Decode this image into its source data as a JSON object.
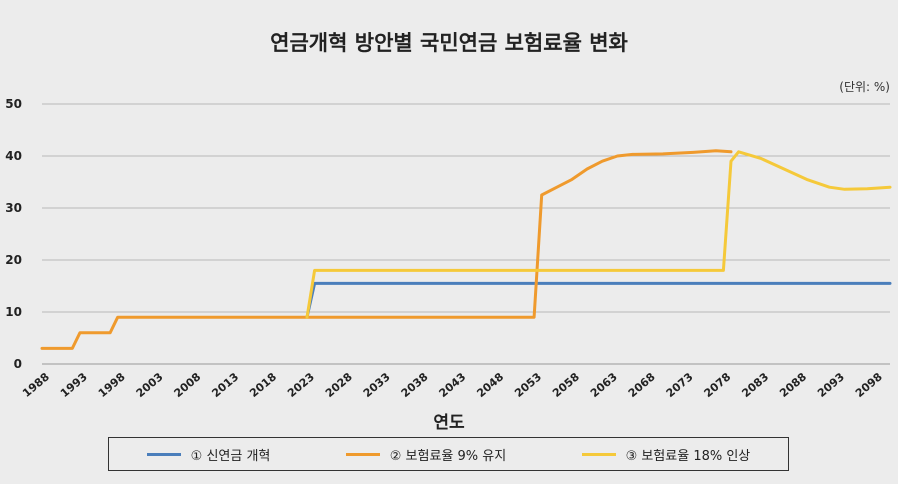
{
  "chart_data": {
    "type": "line",
    "title": "연금개혁 방안별 국민연금 보험료율 변화",
    "unit": "(단위: %)",
    "xlabel": "연도",
    "ylabel": "",
    "ylim": [
      0,
      50
    ],
    "yticks": [
      "0",
      "10",
      "20",
      "30",
      "40",
      "50"
    ],
    "xlim": [
      1988,
      2100
    ],
    "xticks": [
      "1988",
      "1993",
      "1998",
      "2003",
      "2008",
      "2013",
      "2018",
      "2023",
      "2028",
      "2033",
      "2038",
      "2043",
      "2048",
      "2053",
      "2058",
      "2063",
      "2068",
      "2073",
      "2078",
      "2083",
      "2088",
      "2093",
      "2098"
    ],
    "grid": true,
    "legend_position": "bottom",
    "series": [
      {
        "name": "① 신연금 개혁",
        "color": "#4a7ebb",
        "points": [
          [
            2023,
            9
          ],
          [
            2024,
            15.5
          ],
          [
            2100,
            15.5
          ]
        ]
      },
      {
        "name": "② 보험료율 9% 유지",
        "color": "#ef9a2d",
        "points": [
          [
            1988,
            3
          ],
          [
            1992,
            3
          ],
          [
            1993,
            6
          ],
          [
            1997,
            6
          ],
          [
            1998,
            9
          ],
          [
            2053,
            9
          ],
          [
            2054,
            32.5
          ],
          [
            2056,
            34
          ],
          [
            2058,
            35.5
          ],
          [
            2060,
            37.5
          ],
          [
            2062,
            39
          ],
          [
            2064,
            40
          ],
          [
            2066,
            40.3
          ],
          [
            2070,
            40.4
          ],
          [
            2074,
            40.7
          ],
          [
            2077,
            41
          ],
          [
            2079,
            40.8
          ]
        ]
      },
      {
        "name": "③ 보험료율 18% 인상",
        "color": "#f5c93a",
        "points": [
          [
            2023,
            9
          ],
          [
            2024,
            18
          ],
          [
            2078,
            18
          ],
          [
            2079,
            39
          ],
          [
            2080,
            40.8
          ],
          [
            2083,
            39.5
          ],
          [
            2086,
            37.5
          ],
          [
            2089,
            35.5
          ],
          [
            2092,
            34
          ],
          [
            2094,
            33.6
          ],
          [
            2097,
            33.7
          ],
          [
            2100,
            34
          ]
        ]
      }
    ]
  }
}
